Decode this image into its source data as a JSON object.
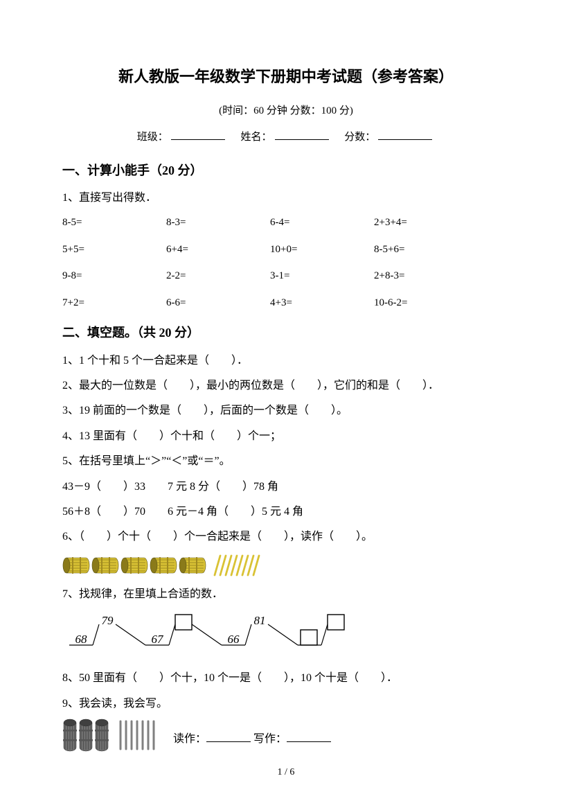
{
  "title": "新人教版一年级数学下册期中考试题（参考答案）",
  "subtitle": "(时间：60 分钟    分数：100 分)",
  "info": {
    "class_label": "班级：",
    "name_label": "姓名：",
    "score_label": "分数："
  },
  "section1": {
    "header": "一、计算小能手（20 分）",
    "q1_label": "1、直接写出得数．",
    "grid": [
      [
        "8-5=",
        "8-3=",
        "6-4=",
        "2+3+4="
      ],
      [
        "5+5=",
        "6+4=",
        "10+0=",
        "8-5+6="
      ],
      [
        "9-8=",
        "2-2=",
        "3-1=",
        "2+8-3="
      ],
      [
        "7+2=",
        "6-6=",
        "4+3=",
        "10-6-2="
      ]
    ]
  },
  "section2": {
    "header": "二、填空题。（共 20 分）",
    "q1": "1、1 个十和 5 个一合起来是（　　）．",
    "q2": "2、最大的一位数是（　　），最小的两位数是（　　），它们的和是（　　）．",
    "q3": "3、19 前面的一个数是（　　），后面的一个数是（　　）。",
    "q4": "4、13 里面有（　　）个十和（　　）个一；",
    "q5": "5、在括号里填上“＞”“＜”或“＝”。",
    "q5a": "43－9（　　）33　　7 元 8 分（　　）78 角",
    "q5b": "56＋8（　　）70　　6 元－4 角（　　）5 元 4 角",
    "q6": "6、（　　）个十（　　）个一合起来是（　　），读作（　　）。",
    "q6_visual": {
      "bundles": 5,
      "loose_sticks": 8,
      "bundle_color": "#d9c234",
      "bundle_shadow": "#8a7a1a",
      "stick_color": "#d9c234",
      "stick_width": 2.5
    },
    "q7": "7、找规律，在里填上合适的数．",
    "q7_pattern": {
      "segments": [
        {
          "low": "68",
          "high": "79"
        },
        {
          "low": "67",
          "high": ""
        },
        {
          "low": "66",
          "high": "81"
        },
        {
          "low": "",
          "high": ""
        }
      ],
      "line_color": "#000000",
      "box_color": "#000000",
      "font_style": "italic",
      "font_size": 17
    },
    "q8": "8、50 里面有（　　）个十，10 个一是（　　），10 个十是（　　）．",
    "q9": "9、我会读，我会写。",
    "q9_visual": {
      "bundles": 3,
      "loose_sticks": 7,
      "bundle_color": "#707070",
      "bundle_shadow": "#404040",
      "stick_color": "#808080"
    },
    "q9_read": "读作：",
    "q9_write": "写作："
  },
  "page_num": "1 / 6"
}
